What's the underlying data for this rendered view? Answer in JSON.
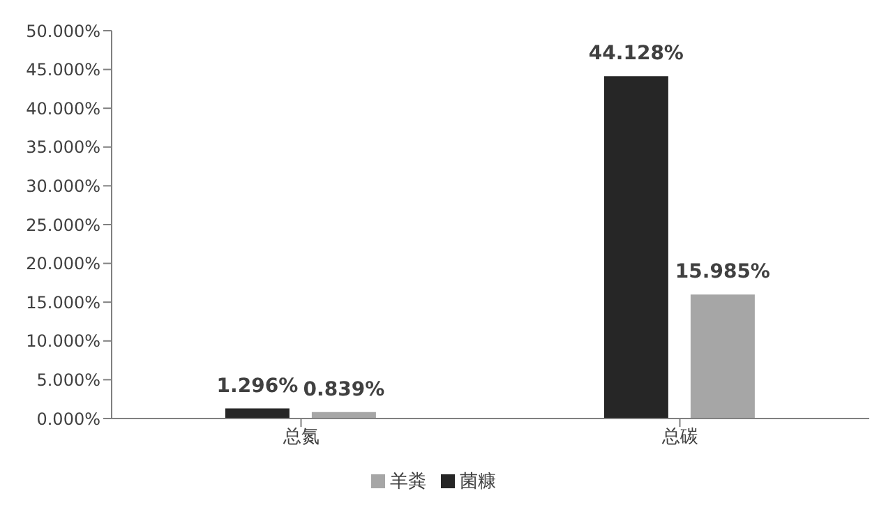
{
  "chart_data": {
    "type": "bar",
    "categories": [
      "总氮",
      "总碳"
    ],
    "series": [
      {
        "name": "菌糠",
        "color": "#262626",
        "values": [
          1.296,
          44.128
        ],
        "value_labels": [
          "1.296%",
          "44.128%"
        ]
      },
      {
        "name": "羊粪",
        "color": "#a6a6a6",
        "values": [
          0.839,
          15.985
        ],
        "value_labels": [
          "0.839%",
          "15.985%"
        ]
      }
    ],
    "ylim": [
      0,
      50
    ],
    "yticks": [
      {
        "value": 0,
        "label": "0.000%"
      },
      {
        "value": 5,
        "label": "5.000%"
      },
      {
        "value": 10,
        "label": "10.000%"
      },
      {
        "value": 15,
        "label": "15.000%"
      },
      {
        "value": 20,
        "label": "20.000%"
      },
      {
        "value": 25,
        "label": "25.000%"
      },
      {
        "value": 30,
        "label": "30.000%"
      },
      {
        "value": 35,
        "label": "35.000%"
      },
      {
        "value": 40,
        "label": "40.000%"
      },
      {
        "value": 45,
        "label": "45.000%"
      },
      {
        "value": 50,
        "label": "50.000%"
      }
    ],
    "grid": false,
    "legend": "bottom"
  }
}
